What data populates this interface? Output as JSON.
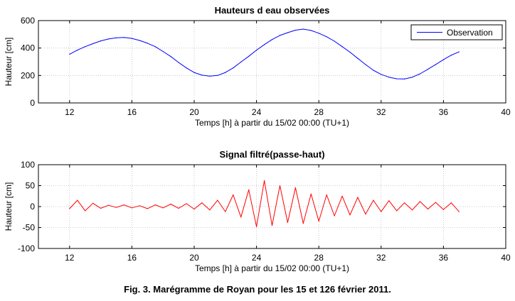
{
  "caption": "Fig. 3. Marégramme de Royan pour les 15 et 126 février 2011.",
  "chart_data": [
    {
      "type": "line",
      "title": "Hauteurs d eau observées",
      "xlabel": "Temps  [h]  à partir du 15/02 00:00 (TU+1)",
      "ylabel": "Hauteur  [cm]",
      "xlim": [
        10,
        40
      ],
      "ylim": [
        0,
        600
      ],
      "xticks": [
        12,
        16,
        20,
        24,
        28,
        32,
        36,
        40
      ],
      "yticks": [
        0,
        200,
        400,
        600
      ],
      "grid": true,
      "legend": {
        "position": "top-right",
        "entries": [
          "Observation"
        ]
      },
      "series": [
        {
          "name": "Observation",
          "color": "#0000ff",
          "x": [
            12,
            12.5,
            13,
            13.5,
            14,
            14.5,
            15,
            15.5,
            16,
            16.5,
            17,
            17.5,
            18,
            18.5,
            19,
            19.5,
            20,
            20.5,
            21,
            21.5,
            22,
            22.5,
            23,
            23.5,
            24,
            24.5,
            25,
            25.5,
            26,
            26.5,
            27,
            27.5,
            28,
            28.5,
            29,
            29.5,
            30,
            30.5,
            31,
            31.5,
            32,
            32.5,
            33,
            33.5,
            34,
            34.5,
            35,
            35.5,
            36,
            36.5,
            37
          ],
          "y": [
            355,
            385,
            410,
            432,
            452,
            466,
            475,
            477,
            470,
            455,
            435,
            410,
            375,
            338,
            295,
            255,
            222,
            202,
            195,
            200,
            222,
            255,
            298,
            340,
            385,
            425,
            462,
            492,
            512,
            530,
            538,
            528,
            508,
            482,
            450,
            410,
            370,
            325,
            280,
            238,
            208,
            188,
            176,
            175,
            188,
            212,
            245,
            280,
            315,
            348,
            372
          ]
        }
      ]
    },
    {
      "type": "line",
      "title": "Signal filtré(passe-haut)",
      "xlabel": "Temps  [h]  à partir du 15/02 00:00 (TU+1)",
      "ylabel": "Hauteur  [cm]",
      "xlim": [
        10,
        40
      ],
      "ylim": [
        -100,
        100
      ],
      "xticks": [
        12,
        16,
        20,
        24,
        28,
        32,
        36,
        40
      ],
      "yticks": [
        -100,
        -50,
        0,
        50,
        100
      ],
      "grid": true,
      "series": [
        {
          "name": "",
          "color": "#ff0000",
          "x": [
            12,
            12.5,
            13,
            13.5,
            14,
            14.5,
            15,
            15.5,
            16,
            16.5,
            17,
            17.5,
            18,
            18.5,
            19,
            19.5,
            20,
            20.5,
            21,
            21.5,
            22,
            22.5,
            23,
            23.5,
            24,
            24.5,
            25,
            25.5,
            26,
            26.5,
            27,
            27.5,
            28,
            28.5,
            29,
            29.5,
            30,
            30.5,
            31,
            31.5,
            32,
            32.5,
            33,
            33.5,
            34,
            34.5,
            35,
            35.5,
            36,
            36.5,
            37
          ],
          "y": [
            -5,
            15,
            -10,
            8,
            -4,
            3,
            -2,
            4,
            -3,
            2,
            -5,
            4,
            -3,
            6,
            -4,
            7,
            -6,
            9,
            -8,
            15,
            -12,
            28,
            -25,
            40,
            -48,
            62,
            -45,
            50,
            -38,
            45,
            -40,
            30,
            -35,
            28,
            -22,
            25,
            -20,
            22,
            -18,
            15,
            -12,
            14,
            -10,
            9,
            -8,
            12,
            -6,
            10,
            -7,
            9,
            -12
          ]
        }
      ]
    }
  ]
}
